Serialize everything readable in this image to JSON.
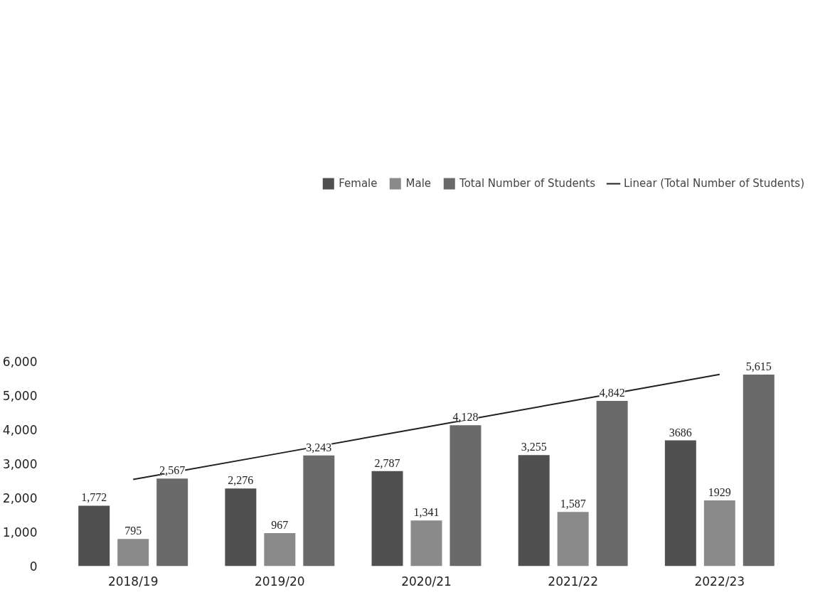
{
  "chart_data": {
    "type": "bar",
    "categories": [
      "2018/19",
      "2019/20",
      "2020/21",
      "2021/22",
      "2022/23"
    ],
    "series": [
      {
        "name": "Female",
        "color": "#505050",
        "values": [
          1772,
          2276,
          2787,
          3255,
          3686
        ],
        "value_labels": [
          "1,772",
          "2,276",
          "2,787",
          "3,255",
          "3686"
        ]
      },
      {
        "name": "Male",
        "color": "#8a8a8a",
        "values": [
          795,
          967,
          1341,
          1587,
          1929
        ],
        "value_labels": [
          "795",
          "967",
          "1,341",
          "1,587",
          "1929"
        ]
      },
      {
        "name": "Total Number of Students",
        "color": "#6a6a6a",
        "values": [
          2567,
          3243,
          4128,
          4842,
          5615
        ],
        "value_labels": [
          "2,567",
          "3,243",
          "4,128",
          "4,842",
          "5,615"
        ]
      },
      {
        "name": "Linear (Total Number of Students)",
        "type": "line",
        "color": "#202020",
        "x": [
          "2018/19",
          "2019/20",
          "2020/21",
          "2021/22",
          "2022/23"
        ],
        "values": [
          2540,
          3310,
          4080,
          4850,
          5620
        ]
      }
    ],
    "ylim": [
      0,
      6000
    ],
    "yticks": [
      0,
      {
        "value": 1000,
        "label": "1,000"
      },
      {
        "value": 2000,
        "label": "2,000"
      },
      {
        "value": 3000,
        "label": "3,000"
      },
      {
        "value": 4000,
        "label": "4,000"
      },
      {
        "value": 5000,
        "label": "5,000"
      },
      {
        "value": 6000,
        "label": "6,000"
      }
    ],
    "grid": false,
    "legend": "top"
  }
}
